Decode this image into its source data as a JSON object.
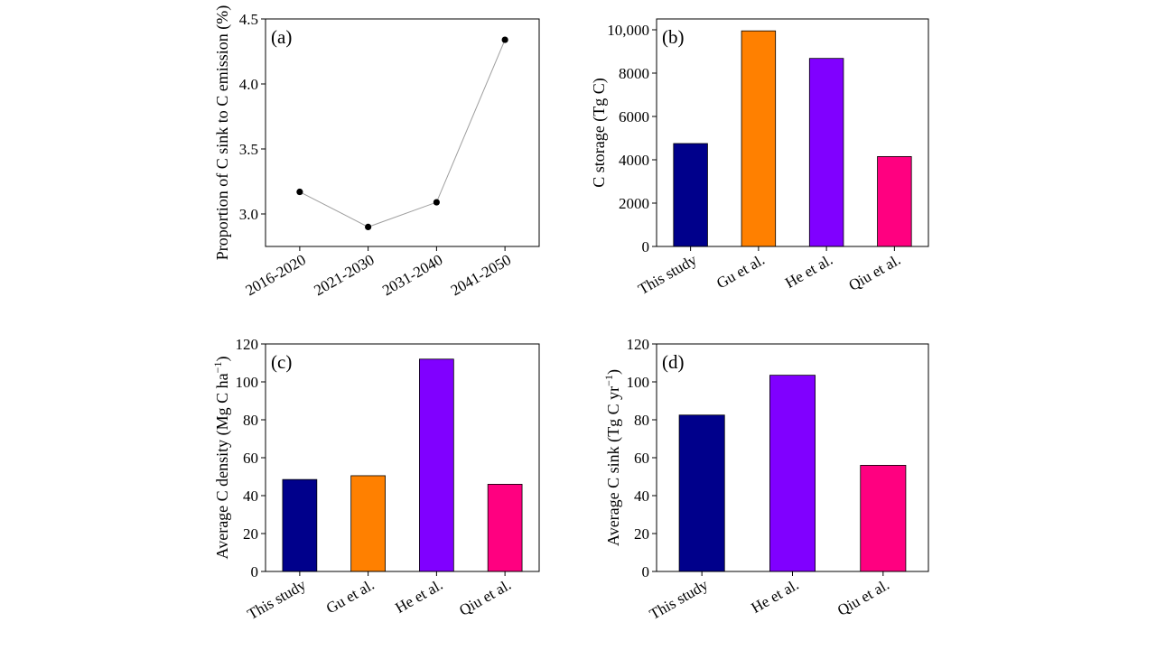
{
  "chart_data": [
    {
      "id": "a",
      "type": "line",
      "panel_label": "(a)",
      "categories": [
        "2016-2020",
        "2021-2030",
        "2031-2040",
        "2041-2050"
      ],
      "values": [
        3.17,
        2.9,
        3.09,
        4.34
      ],
      "ylabel": "Proportion of C sink to C emission (%)",
      "ylim": [
        2.75,
        4.5
      ],
      "yticks": [
        "3.0",
        "3.5",
        "4.0",
        "4.5"
      ],
      "ytick_values": [
        3.0,
        3.5,
        4.0,
        4.5
      ],
      "line_color": "#9e9e9e",
      "marker_color": "#000000",
      "grid": false
    },
    {
      "id": "b",
      "type": "bar",
      "panel_label": "(b)",
      "categories": [
        "This study",
        "Gu et al.",
        "He et al.",
        "Qiu et al."
      ],
      "values": [
        4750,
        9950,
        8680,
        4150
      ],
      "colors": [
        "#00008b",
        "#ff8000",
        "#8000ff",
        "#ff0080"
      ],
      "ylabel": "C storage (Tg C)",
      "ylim": [
        0,
        10500
      ],
      "yticks": [
        "0",
        "2000",
        "4000",
        "6000",
        "8000",
        "10,000"
      ],
      "ytick_values": [
        0,
        2000,
        4000,
        6000,
        8000,
        10000
      ],
      "grid": false
    },
    {
      "id": "c",
      "type": "bar",
      "panel_label": "(c)",
      "categories": [
        "This study",
        "Gu et al.",
        "He et al.",
        "Qiu et al."
      ],
      "values": [
        48.5,
        50.5,
        112,
        46
      ],
      "colors": [
        "#00008b",
        "#ff8000",
        "#8000ff",
        "#ff0080"
      ],
      "ylabel": "Average C density (Mg C ha",
      "ylabel_sup": "−1",
      "ylabel_end": ")",
      "ylim": [
        0,
        120
      ],
      "yticks": [
        "0",
        "20",
        "40",
        "60",
        "80",
        "100",
        "120"
      ],
      "ytick_values": [
        0,
        20,
        40,
        60,
        80,
        100,
        120
      ],
      "grid": false
    },
    {
      "id": "d",
      "type": "bar",
      "panel_label": "(d)",
      "categories": [
        "This study",
        "He et al.",
        "Qiu et al."
      ],
      "values": [
        82.5,
        103.5,
        56
      ],
      "colors": [
        "#00008b",
        "#8000ff",
        "#ff0080"
      ],
      "ylabel": "Average C sink (Tg C yr",
      "ylabel_sup": "−1",
      "ylabel_end": ")",
      "ylim": [
        0,
        120
      ],
      "yticks": [
        "0",
        "20",
        "40",
        "60",
        "80",
        "100",
        "120"
      ],
      "ytick_values": [
        0,
        20,
        40,
        60,
        80,
        100,
        120
      ],
      "grid": false
    }
  ]
}
